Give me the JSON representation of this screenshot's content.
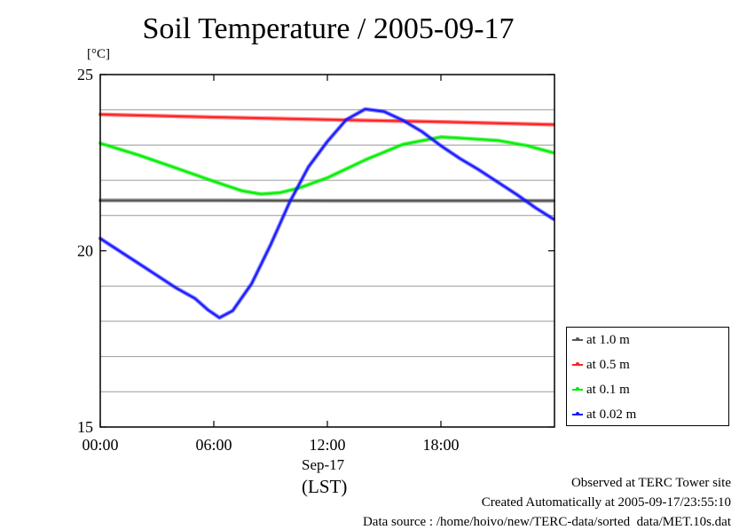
{
  "chart_data": {
    "type": "line",
    "title": "Soil Temperature / 2005-09-17",
    "ylabel": "[°C]",
    "xlabel": "(LST)",
    "x_date_label": "Sep-17",
    "xlim": [
      0,
      24
    ],
    "ylim": [
      15,
      25
    ],
    "x_ticks": [
      {
        "value": 0,
        "label": "00:00"
      },
      {
        "value": 6,
        "label": "06:00"
      },
      {
        "value": 12,
        "label": "12:00"
      },
      {
        "value": 18,
        "label": "18:00"
      }
    ],
    "y_ticks": [
      {
        "value": 25,
        "label": "25"
      },
      {
        "value": 20,
        "label": "20"
      },
      {
        "value": 15,
        "label": "15"
      }
    ],
    "y_grid": [
      16,
      17,
      18,
      19,
      21,
      22,
      23,
      24
    ],
    "grid": true,
    "legend_position": "bottom-right, outside plot",
    "series": [
      {
        "name": "at 1.0 m",
        "color": "#555555",
        "points": [
          [
            0,
            21.43
          ],
          [
            6,
            21.43
          ],
          [
            12,
            21.42
          ],
          [
            18,
            21.42
          ],
          [
            23.95,
            21.42
          ]
        ]
      },
      {
        "name": "at 0.5 m",
        "color": "#ff2020",
        "points": [
          [
            0,
            23.87
          ],
          [
            6,
            23.79
          ],
          [
            12,
            23.72
          ],
          [
            18,
            23.66
          ],
          [
            23.95,
            23.58
          ]
        ]
      },
      {
        "name": "at 0.1 m",
        "color": "#00ee00",
        "points": [
          [
            0,
            23.05
          ],
          [
            2,
            22.72
          ],
          [
            4,
            22.35
          ],
          [
            6,
            21.97
          ],
          [
            7.5,
            21.7
          ],
          [
            8.5,
            21.61
          ],
          [
            9.5,
            21.65
          ],
          [
            10.5,
            21.78
          ],
          [
            12,
            22.07
          ],
          [
            14,
            22.58
          ],
          [
            16,
            23.02
          ],
          [
            18,
            23.23
          ],
          [
            19,
            23.2
          ],
          [
            21,
            23.13
          ],
          [
            22.5,
            22.99
          ],
          [
            23.95,
            22.78
          ]
        ]
      },
      {
        "name": "at 0.02 m",
        "color": "#1818ff",
        "points": [
          [
            0,
            20.35
          ],
          [
            1,
            20.0
          ],
          [
            2,
            19.65
          ],
          [
            3,
            19.3
          ],
          [
            4,
            18.95
          ],
          [
            5,
            18.65
          ],
          [
            5.7,
            18.32
          ],
          [
            6.3,
            18.1
          ],
          [
            7,
            18.3
          ],
          [
            8,
            19.07
          ],
          [
            9,
            20.17
          ],
          [
            10,
            21.37
          ],
          [
            11,
            22.38
          ],
          [
            12,
            23.1
          ],
          [
            13,
            23.72
          ],
          [
            14,
            24.02
          ],
          [
            15,
            23.95
          ],
          [
            16,
            23.7
          ],
          [
            17,
            23.38
          ],
          [
            18,
            22.98
          ],
          [
            19,
            22.62
          ],
          [
            20,
            22.3
          ],
          [
            21,
            21.95
          ],
          [
            22,
            21.6
          ],
          [
            23,
            21.22
          ],
          [
            23.95,
            20.9
          ]
        ]
      }
    ]
  },
  "footer": {
    "line1": "Observed at TERC Tower site",
    "line2": "Created Automatically at 2005-09-17/23:55:10",
    "line3": "Data source : /home/hoivo/new/TERC-data/sorted  data/MET.10s.dat"
  }
}
